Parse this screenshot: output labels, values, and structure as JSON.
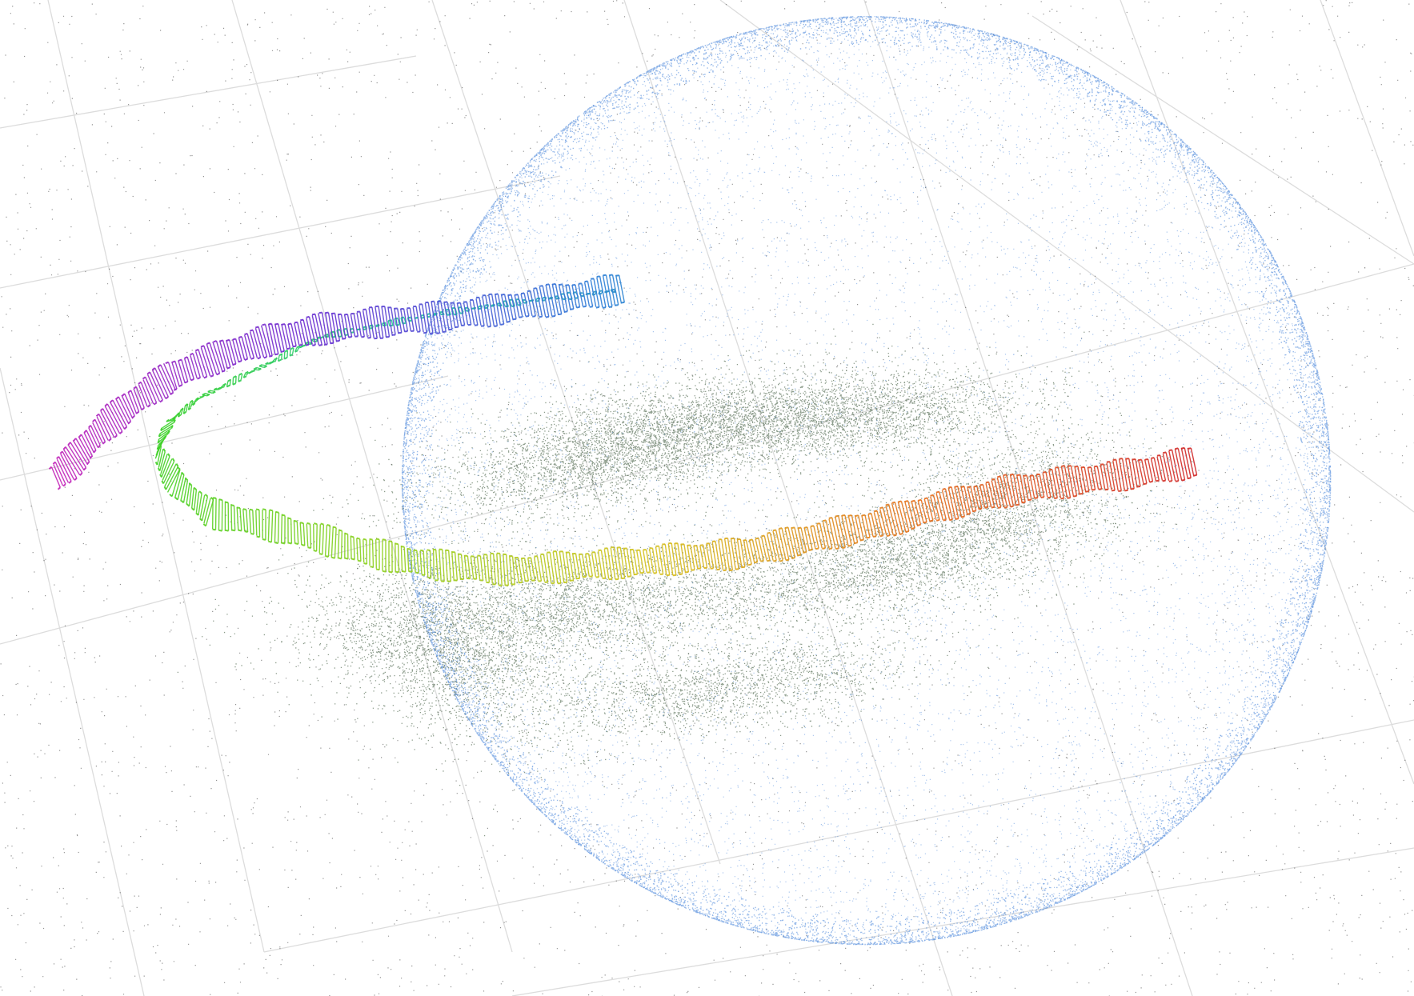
{
  "scene": {
    "view": "3d-point-cloud-viewer",
    "background_color": "#ffffff",
    "grid_color": "#dcdcdc",
    "scatter_color": "#3a3a3a",
    "sphere_color": "#3f7fd8",
    "dense_cloud_color": "#2e4a2c",
    "trajectory_type": "camera-frustum-path",
    "trajectory_gradient": [
      "#d12828",
      "#e5711f",
      "#d6c21f",
      "#8fd11f",
      "#3bd128",
      "#22c89a",
      "#2e7fd8",
      "#6a2bd1",
      "#c523b8"
    ],
    "visible_text": []
  }
}
